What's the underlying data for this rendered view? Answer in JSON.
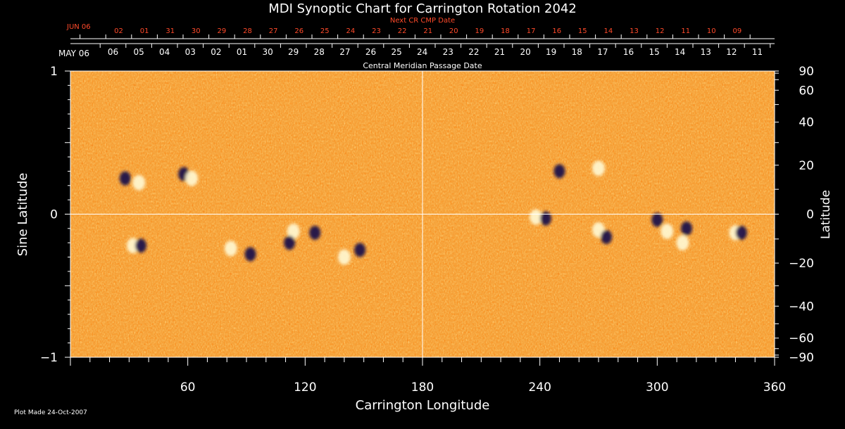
{
  "chart_data": {
    "type": "heatmap",
    "title": "MDI Synoptic Chart for Carrington Rotation 2042",
    "xlabel": "Carrington Longitude",
    "ylabel_left": "Sine Latitude",
    "ylabel_right": "Latitude",
    "xlim": [
      0,
      360
    ],
    "ylim": [
      -1,
      1
    ],
    "x_ticks": [
      60,
      120,
      180,
      240,
      300,
      360
    ],
    "left_ticks": [
      {
        "v": -1,
        "label": "−1"
      },
      {
        "v": 0,
        "label": "0"
      },
      {
        "v": 1,
        "label": "1"
      }
    ],
    "right_ticks": [
      90,
      60,
      40,
      20,
      0,
      -20,
      -40,
      -60,
      -90
    ],
    "cmp_axis_label": "Central Meridian Passage Date",
    "cmp_month_label": "MAY 06",
    "cmp_dates": [
      "06",
      "05",
      "04",
      "03",
      "02",
      "01",
      "30",
      "29",
      "28",
      "27",
      "26",
      "25",
      "24",
      "23",
      "22",
      "21",
      "20",
      "19",
      "18",
      "17",
      "16",
      "15",
      "14",
      "13",
      "12",
      "11"
    ],
    "next_axis_label": "Next CR CMP Date",
    "next_month_label": "JUN 06",
    "next_dates": [
      "02",
      "01",
      "31",
      "30",
      "29",
      "28",
      "27",
      "26",
      "25",
      "24",
      "23",
      "22",
      "21",
      "20",
      "19",
      "18",
      "17",
      "16",
      "15",
      "14",
      "13",
      "12",
      "11",
      "10",
      "09"
    ],
    "grid": "centre lines at 180° longitude and 0 sine latitude",
    "colormap": "magnetic field: dark (negative) – orange (neutral) – white (positive)",
    "active_regions": [
      {
        "lon": 28,
        "lat": 0.25,
        "pol": "-"
      },
      {
        "lon": 35,
        "lat": 0.22,
        "pol": "+"
      },
      {
        "lon": 58,
        "lat": 0.28,
        "pol": "-"
      },
      {
        "lon": 62,
        "lat": 0.25,
        "pol": "+"
      },
      {
        "lon": 32,
        "lat": -0.22,
        "pol": "+"
      },
      {
        "lon": 36,
        "lat": -0.22,
        "pol": "-"
      },
      {
        "lon": 82,
        "lat": -0.24,
        "pol": "+"
      },
      {
        "lon": 92,
        "lat": -0.28,
        "pol": "-"
      },
      {
        "lon": 114,
        "lat": -0.12,
        "pol": "+"
      },
      {
        "lon": 112,
        "lat": -0.2,
        "pol": "-"
      },
      {
        "lon": 125,
        "lat": -0.13,
        "pol": "-"
      },
      {
        "lon": 140,
        "lat": -0.3,
        "pol": "+"
      },
      {
        "lon": 148,
        "lat": -0.25,
        "pol": "-"
      },
      {
        "lon": 238,
        "lat": -0.02,
        "pol": "+"
      },
      {
        "lon": 243,
        "lat": -0.03,
        "pol": "-"
      },
      {
        "lon": 270,
        "lat": -0.11,
        "pol": "+"
      },
      {
        "lon": 274,
        "lat": -0.16,
        "pol": "-"
      },
      {
        "lon": 300,
        "lat": -0.04,
        "pol": "-"
      },
      {
        "lon": 305,
        "lat": -0.12,
        "pol": "+"
      },
      {
        "lon": 315,
        "lat": -0.1,
        "pol": "-"
      },
      {
        "lon": 313,
        "lat": -0.2,
        "pol": "+"
      },
      {
        "lon": 340,
        "lat": -0.13,
        "pol": "+"
      },
      {
        "lon": 343,
        "lat": -0.13,
        "pol": "-"
      },
      {
        "lon": 270,
        "lat": 0.32,
        "pol": "+"
      },
      {
        "lon": 250,
        "lat": 0.3,
        "pol": "-"
      }
    ]
  },
  "footer": {
    "plot_made": "Plot Made 24-Oct-2007"
  },
  "colors": {
    "background": "#000000",
    "axis": "#ffffff",
    "next_cr_text": "#ff4a2a",
    "field_neutral": "#e85a10",
    "field_positive": "#fff7d0",
    "field_negative": "#1a0a4a"
  }
}
